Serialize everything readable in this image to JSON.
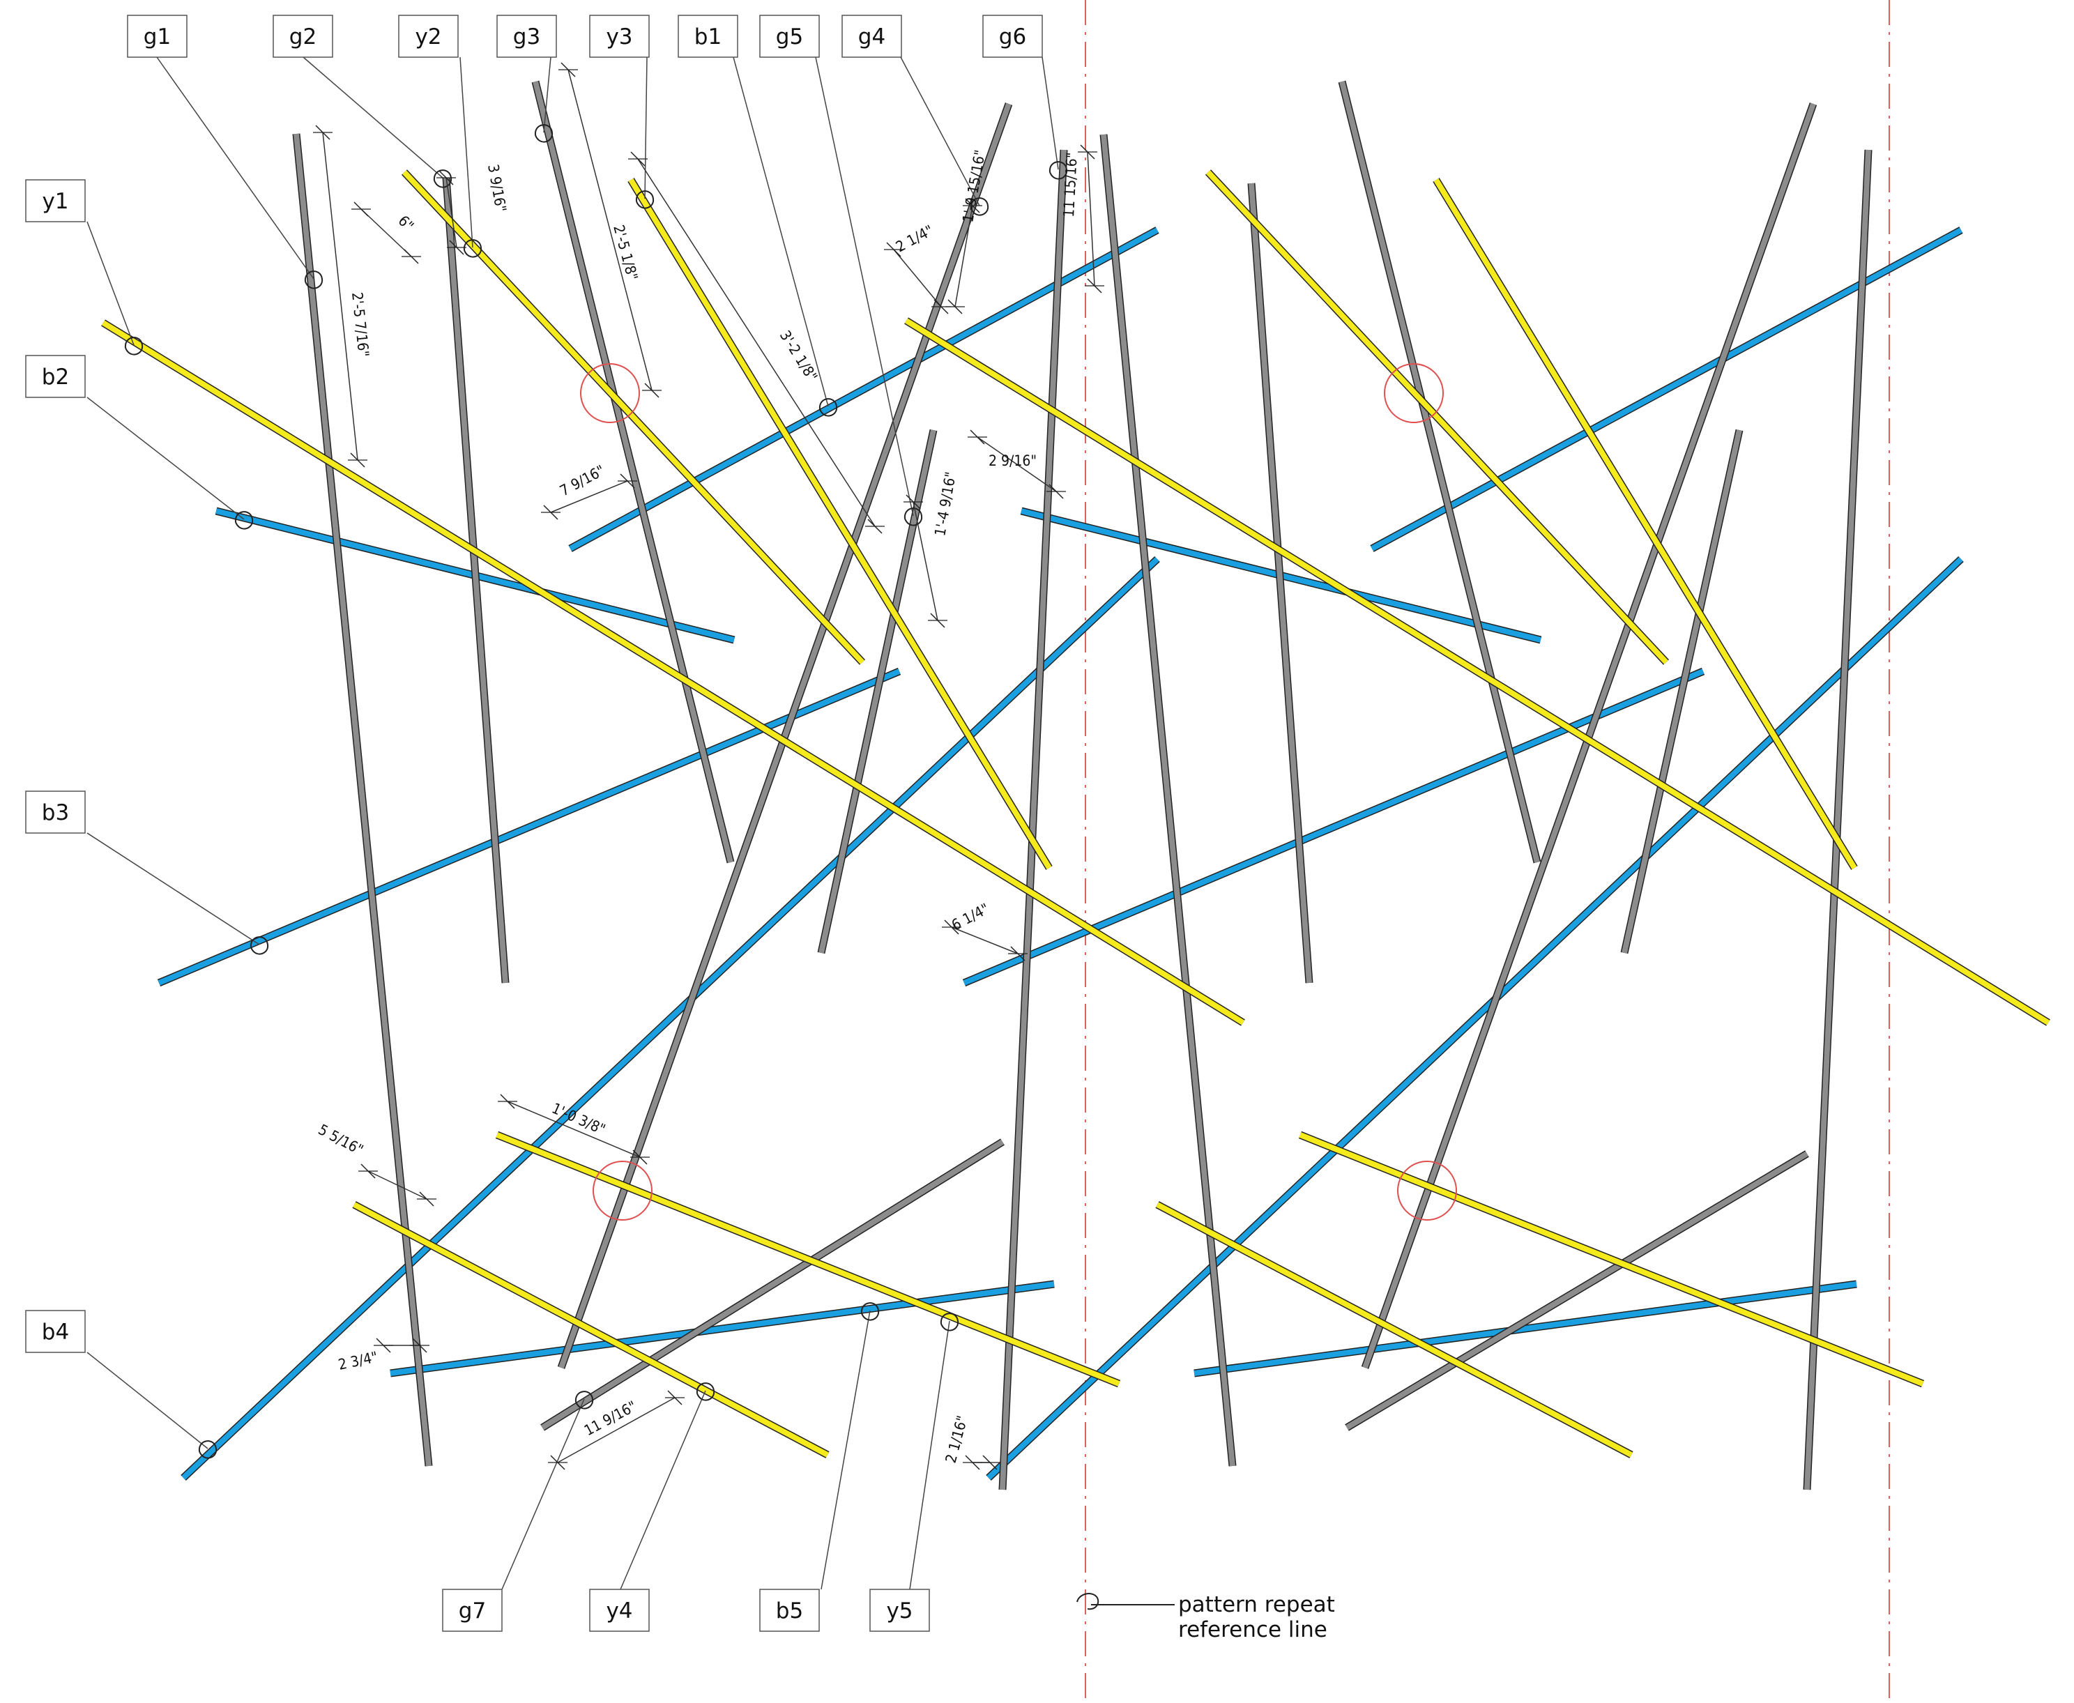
{
  "colors": {
    "gray": "#8c8c8c",
    "blue": "#1aa0e0",
    "yellow": "#f4ea1c",
    "outline": "#222222",
    "repeat_line": "#e06060"
  },
  "legend": {
    "text_line1": "pattern repeat",
    "text_line2": "reference line"
  },
  "labels": {
    "g1": "g1",
    "g2": "g2",
    "y2": "y2",
    "g3": "g3",
    "y3": "y3",
    "b1": "b1",
    "g5": "g5",
    "g4": "g4",
    "g6": "g6",
    "y1": "y1",
    "b2": "b2",
    "b3": "b3",
    "b4": "b4",
    "g7": "g7",
    "y4": "y4",
    "b5": "b5",
    "y5": "y5"
  },
  "dimensions": {
    "d1": "3 9/16\"",
    "d2": "6\"",
    "d3": "2'-5 7/16\"",
    "d4": "2'-5 1/8\"",
    "d5": "3'-2 1/8\"",
    "d6": "1'-9 15/16\"",
    "d7": "11 15/16\"",
    "d8": "2 1/4\"",
    "d9": "7 9/16\"",
    "d10": "2 9/16\"",
    "d11": "1'-4 9/16\"",
    "d12": "6 1/4\"",
    "d13": "5 5/16\"",
    "d14": "1'-0 3/8\"",
    "d15": "2 3/4\"",
    "d16": "11 9/16\"",
    "d17": "2 1/16\""
  }
}
